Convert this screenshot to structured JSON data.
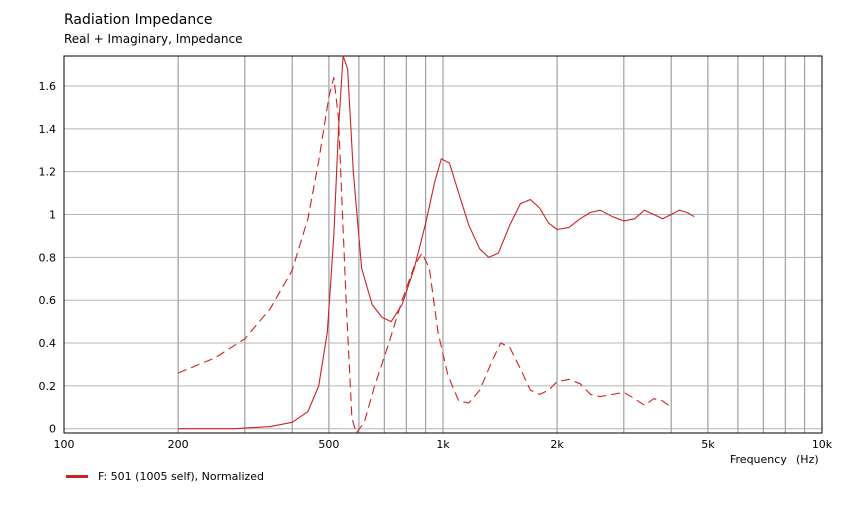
{
  "chart_data": {
    "type": "line",
    "title": "Radiation Impedance",
    "subtitle": "Real + Imaginary, Impedance",
    "xlabel": "Frequency",
    "xunit": "(Hz)",
    "xscale": "log",
    "xlim": [
      100,
      10000
    ],
    "ylim": [
      -0.02,
      1.74
    ],
    "grid": true,
    "x_tick_labels": [
      {
        "value": 100,
        "label": "100"
      },
      {
        "value": 200,
        "label": "200"
      },
      {
        "value": 500,
        "label": "500"
      },
      {
        "value": 1000,
        "label": "1k"
      },
      {
        "value": 2000,
        "label": "2k"
      },
      {
        "value": 5000,
        "label": "5k"
      },
      {
        "value": 10000,
        "label": "10k"
      }
    ],
    "y_ticks": [
      0,
      0.2,
      0.4,
      0.6,
      0.8,
      1,
      1.2,
      1.4,
      1.6
    ],
    "y_tick_labels": [
      "0",
      "0.2",
      "0.4",
      "0.6",
      "0.8",
      "1",
      "1.2",
      "1.4",
      "1.6"
    ],
    "legend_label": "F: 501 (1005 self), Normalized",
    "legend_position": "bottom-left",
    "color": "#cc2222",
    "series": [
      {
        "style": "solid",
        "points": [
          [
            200,
            0
          ],
          [
            280,
            0
          ],
          [
            350,
            0.01
          ],
          [
            400,
            0.03
          ],
          [
            440,
            0.08
          ],
          [
            470,
            0.2
          ],
          [
            495,
            0.45
          ],
          [
            515,
            0.9
          ],
          [
            530,
            1.4
          ],
          [
            545,
            1.74
          ],
          [
            560,
            1.68
          ],
          [
            580,
            1.2
          ],
          [
            610,
            0.75
          ],
          [
            650,
            0.58
          ],
          [
            690,
            0.52
          ],
          [
            730,
            0.5
          ],
          [
            780,
            0.58
          ],
          [
            840,
            0.75
          ],
          [
            900,
            0.96
          ],
          [
            950,
            1.15
          ],
          [
            990,
            1.26
          ],
          [
            1040,
            1.24
          ],
          [
            1100,
            1.1
          ],
          [
            1170,
            0.95
          ],
          [
            1250,
            0.84
          ],
          [
            1320,
            0.8
          ],
          [
            1400,
            0.82
          ],
          [
            1500,
            0.95
          ],
          [
            1600,
            1.05
          ],
          [
            1700,
            1.07
          ],
          [
            1800,
            1.03
          ],
          [
            1900,
            0.96
          ],
          [
            2000,
            0.93
          ],
          [
            2150,
            0.94
          ],
          [
            2300,
            0.98
          ],
          [
            2450,
            1.01
          ],
          [
            2600,
            1.02
          ],
          [
            2800,
            0.99
          ],
          [
            3000,
            0.97
          ],
          [
            3200,
            0.98
          ],
          [
            3400,
            1.02
          ],
          [
            3600,
            1
          ],
          [
            3800,
            0.98
          ],
          [
            4000,
            1
          ],
          [
            4200,
            1.02
          ],
          [
            4400,
            1.01
          ],
          [
            4600,
            0.99
          ]
        ]
      },
      {
        "style": "dashed",
        "points": [
          [
            200,
            0.26
          ],
          [
            250,
            0.33
          ],
          [
            300,
            0.42
          ],
          [
            350,
            0.56
          ],
          [
            400,
            0.74
          ],
          [
            440,
            0.98
          ],
          [
            470,
            1.25
          ],
          [
            500,
            1.55
          ],
          [
            515,
            1.64
          ],
          [
            530,
            1.45
          ],
          [
            555,
            0.6
          ],
          [
            575,
            0.05
          ],
          [
            590,
            -0.02
          ],
          [
            620,
            0.03
          ],
          [
            660,
            0.2
          ],
          [
            720,
            0.4
          ],
          [
            780,
            0.6
          ],
          [
            840,
            0.76
          ],
          [
            880,
            0.82
          ],
          [
            920,
            0.75
          ],
          [
            970,
            0.45
          ],
          [
            1030,
            0.25
          ],
          [
            1100,
            0.13
          ],
          [
            1170,
            0.12
          ],
          [
            1250,
            0.18
          ],
          [
            1350,
            0.32
          ],
          [
            1420,
            0.4
          ],
          [
            1500,
            0.38
          ],
          [
            1600,
            0.28
          ],
          [
            1700,
            0.18
          ],
          [
            1800,
            0.16
          ],
          [
            1900,
            0.18
          ],
          [
            2000,
            0.22
          ],
          [
            2150,
            0.23
          ],
          [
            2300,
            0.21
          ],
          [
            2450,
            0.16
          ],
          [
            2600,
            0.15
          ],
          [
            2800,
            0.16
          ],
          [
            3000,
            0.17
          ],
          [
            3200,
            0.14
          ],
          [
            3400,
            0.11
          ],
          [
            3600,
            0.14
          ],
          [
            3800,
            0.13
          ],
          [
            4000,
            0.1
          ]
        ]
      }
    ]
  }
}
